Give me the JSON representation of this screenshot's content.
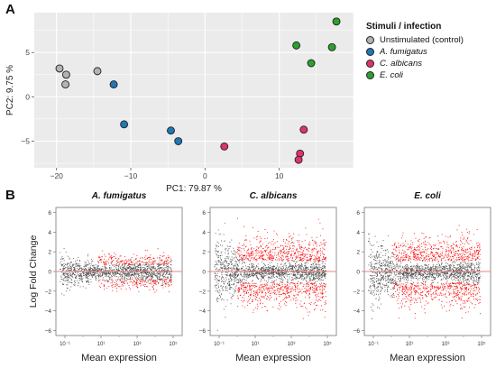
{
  "panels": {
    "a": "A",
    "b": "B"
  },
  "chart_data": [
    {
      "type": "scatter",
      "xlabel": "PC1: 79.87 %",
      "ylabel": "PC2: 9.75 %",
      "xlim": [
        -23,
        20
      ],
      "ylim": [
        -8,
        9.5
      ],
      "x_ticks": [
        -20,
        -10,
        0,
        10
      ],
      "y_ticks": [
        -5,
        0,
        5
      ],
      "grid": true,
      "legend": {
        "title": "Stimuli / infection",
        "placement": "right",
        "entries": [
          {
            "label": "Unstimulated (control)",
            "color": "#b3b3b3",
            "italic": false
          },
          {
            "label": "A. fumigatus",
            "color": "#1f77b4",
            "italic": true
          },
          {
            "label": "C. albicans",
            "color": "#e0336b",
            "italic": true
          },
          {
            "label": "E. coli",
            "color": "#2ca02c",
            "italic": true
          }
        ]
      },
      "series": [
        {
          "name": "Unstimulated (control)",
          "color": "#b3b3b3",
          "points": [
            [
              -19.6,
              3.2
            ],
            [
              -18.7,
              2.5
            ],
            [
              -18.8,
              1.4
            ],
            [
              -14.5,
              2.9
            ]
          ]
        },
        {
          "name": "A. fumigatus",
          "color": "#1f77b4",
          "points": [
            [
              -12.3,
              1.4
            ],
            [
              -10.9,
              -3.1
            ],
            [
              -4.6,
              -3.8
            ],
            [
              -3.6,
              -5.0
            ]
          ]
        },
        {
          "name": "C. albicans",
          "color": "#e0336b",
          "points": [
            [
              2.6,
              -5.6
            ],
            [
              13.3,
              -3.7
            ],
            [
              12.8,
              -6.4
            ],
            [
              12.6,
              -7.1
            ]
          ]
        },
        {
          "name": "E. coli",
          "color": "#2ca02c",
          "points": [
            [
              12.3,
              5.8
            ],
            [
              14.3,
              3.8
            ],
            [
              17.1,
              5.6
            ],
            [
              17.7,
              8.5
            ]
          ]
        }
      ]
    },
    {
      "type": "scatter",
      "title": "A. fumigatus",
      "xlabel": "Mean expression",
      "ylabel": "Log Fold Change",
      "ylim": [
        -6.5,
        6.5
      ],
      "y_ticks": [
        -6,
        -4,
        -2,
        0,
        2,
        4,
        6
      ],
      "x_ticks": [
        "10⁻¹",
        "10¹",
        "10³",
        "10⁵"
      ],
      "x_log_range": [
        -1.5,
        5.5
      ],
      "reference_line_y": 0,
      "point_colors": {
        "not_significant": "#4d4d4d",
        "significant": "#ff0000",
        "reference": "#f08080"
      },
      "sig_upper_max": 3.3,
      "sig_lower_min": -2.6,
      "peak_start": 0.8
    },
    {
      "type": "scatter",
      "title": "C. albicans",
      "xlabel": "Mean expression",
      "ylim": [
        -6.5,
        6.5
      ],
      "y_ticks": [
        -6,
        -4,
        -2,
        0,
        2,
        4,
        6
      ],
      "x_ticks": [
        "10⁻¹",
        "10¹",
        "10³",
        "10⁵"
      ],
      "x_log_range": [
        -1.5,
        5.5
      ],
      "reference_line_y": 0,
      "point_colors": {
        "not_significant": "#4d4d4d",
        "significant": "#ff0000",
        "reference": "#f08080"
      },
      "sig_upper_max": 6.0,
      "sig_lower_min": -5.0,
      "peak_start": 0.0
    },
    {
      "type": "scatter",
      "title": "E. coli",
      "xlabel": "Mean expression",
      "ylim": [
        -6.5,
        6.5
      ],
      "y_ticks": [
        -6,
        -4,
        -2,
        0,
        2,
        4,
        6
      ],
      "x_ticks": [
        "10⁻¹",
        "10¹",
        "10³",
        "10⁵"
      ],
      "x_log_range": [
        -1.5,
        5.5
      ],
      "reference_line_y": 0,
      "point_colors": {
        "not_significant": "#4d4d4d",
        "significant": "#ff0000",
        "reference": "#f08080"
      },
      "sig_upper_max": 6.0,
      "sig_lower_min": -5.0,
      "peak_start": 0.0
    }
  ]
}
